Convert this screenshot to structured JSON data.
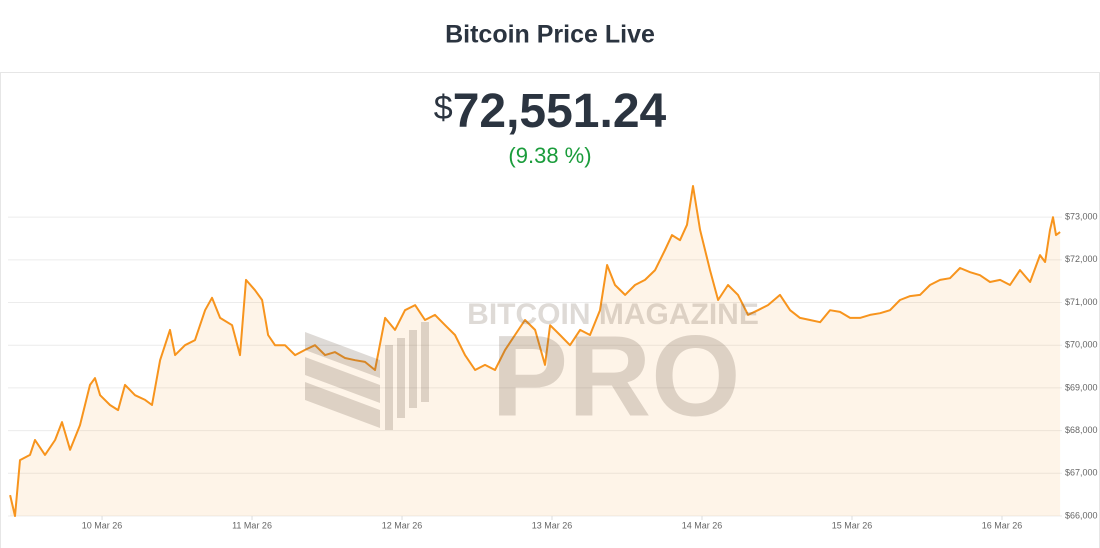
{
  "chart_data": {
    "type": "line",
    "title": "Bitcoin Price Live",
    "price_symbol": "$",
    "price": "72,551.24",
    "change": "(9.38 %)",
    "watermark": {
      "line1": "BITCOIN MAGAZINE",
      "line2": "PRO"
    },
    "x": [
      9.387,
      9.42,
      9.453,
      9.52,
      9.553,
      9.62,
      9.687,
      9.733,
      9.787,
      9.853,
      9.92,
      9.953,
      9.987,
      10.053,
      10.107,
      10.153,
      10.22,
      10.287,
      10.333,
      10.387,
      10.453,
      10.487,
      10.553,
      10.62,
      10.687,
      10.733,
      10.787,
      10.867,
      10.92,
      10.96,
      11.02,
      11.067,
      11.107,
      11.153,
      11.22,
      11.287,
      11.353,
      11.42,
      11.487,
      11.553,
      11.62,
      11.687,
      11.753,
      11.82,
      11.887,
      11.953,
      12.02,
      12.087,
      12.153,
      12.22,
      12.287,
      12.353,
      12.42,
      12.487,
      12.553,
      12.62,
      12.687,
      12.753,
      12.82,
      12.887,
      12.953,
      12.987,
      13.053,
      13.12,
      13.187,
      13.253,
      13.32,
      13.367,
      13.42,
      13.487,
      13.553,
      13.62,
      13.687,
      13.753,
      13.8,
      13.853,
      13.9,
      13.94,
      13.987,
      14.053,
      14.107,
      14.173,
      14.24,
      14.307,
      14.373,
      14.44,
      14.52,
      14.587,
      14.653,
      14.72,
      14.787,
      14.853,
      14.92,
      14.987,
      15.053,
      15.12,
      15.187,
      15.253,
      15.32,
      15.387,
      15.453,
      15.52,
      15.587,
      15.653,
      15.72,
      15.787,
      15.853,
      15.92,
      15.987,
      16.053,
      16.12,
      16.187,
      16.253,
      16.287,
      16.32,
      16.34,
      16.36,
      16.387
    ],
    "series": [
      {
        "name": "Bitcoin Price",
        "color": "#f7941d",
        "values": [
          66490,
          66000,
          67310,
          67430,
          67780,
          67430,
          67780,
          68200,
          67550,
          68130,
          69070,
          69230,
          68830,
          68600,
          68480,
          69070,
          68830,
          68720,
          68600,
          69650,
          70360,
          69770,
          70000,
          70120,
          70820,
          71110,
          70640,
          70470,
          69770,
          71530,
          71290,
          71060,
          70240,
          70000,
          70000,
          69770,
          69890,
          70000,
          69770,
          69840,
          69700,
          69650,
          69610,
          69420,
          70640,
          70360,
          70820,
          70940,
          70590,
          70710,
          70470,
          70240,
          69770,
          69420,
          69540,
          69420,
          69890,
          70240,
          70590,
          70360,
          69540,
          70470,
          70240,
          70000,
          70360,
          70240,
          70820,
          71880,
          71410,
          71180,
          71410,
          71530,
          71760,
          72230,
          72580,
          72460,
          72820,
          73730,
          72700,
          71760,
          71060,
          71410,
          71180,
          70710,
          70820,
          70940,
          71180,
          70820,
          70640,
          70590,
          70540,
          70820,
          70780,
          70640,
          70640,
          70710,
          70750,
          70820,
          71060,
          71150,
          71180,
          71410,
          71530,
          71570,
          71810,
          71710,
          71640,
          71480,
          71530,
          71410,
          71760,
          71480,
          72110,
          71950,
          72700,
          73000,
          72580,
          72650
        ]
      }
    ],
    "xlim": [
      9.373,
      16.4
    ],
    "xticks": [
      {
        "value": 10,
        "label": "10 Mar 26"
      },
      {
        "value": 11,
        "label": "11 Mar 26"
      },
      {
        "value": 12,
        "label": "12 Mar 26"
      },
      {
        "value": 13,
        "label": "13 Mar 26"
      },
      {
        "value": 14,
        "label": "14 Mar 26"
      },
      {
        "value": 15,
        "label": "15 Mar 26"
      },
      {
        "value": 16,
        "label": "16 Mar 26"
      }
    ],
    "ylim": [
      66000,
      73800
    ],
    "yticks": [
      {
        "value": 66000,
        "label": "$66,000"
      },
      {
        "value": 67000,
        "label": "$67,000"
      },
      {
        "value": 68000,
        "label": "$68,000"
      },
      {
        "value": 69000,
        "label": "$69,000"
      },
      {
        "value": 70000,
        "label": "$70,000"
      },
      {
        "value": 71000,
        "label": "$71,000"
      },
      {
        "value": 72000,
        "label": "$72,000"
      },
      {
        "value": 73000,
        "label": "$73,000"
      }
    ],
    "grid": true
  }
}
